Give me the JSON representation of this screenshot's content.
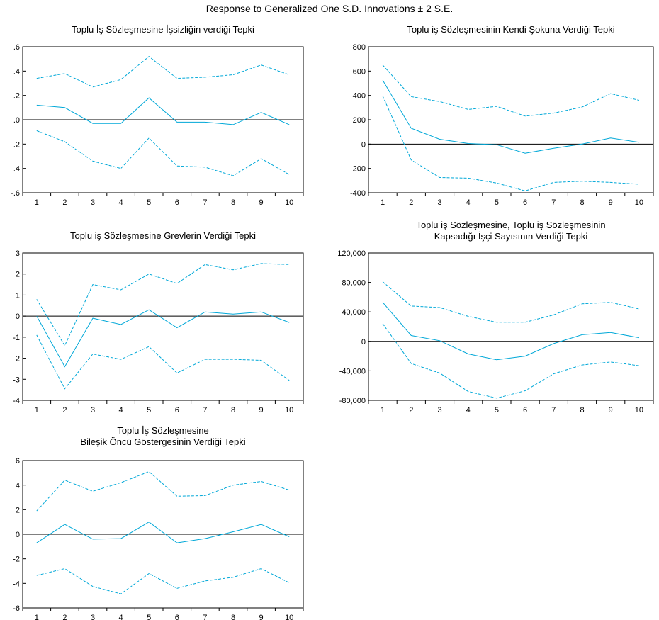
{
  "title": "Response to Generalized One S.D. Innovations ± 2 S.E.",
  "colors": {
    "response": "#00a8d8",
    "band": "#00a8d8",
    "zero": "#000000",
    "frame": "#000000"
  },
  "chart_data": [
    {
      "type": "line",
      "title_lines": [
        "Toplu İş Sözleşmesine İşsizliğin verdiği Tepki"
      ],
      "x": [
        1,
        2,
        3,
        4,
        5,
        6,
        7,
        8,
        9,
        10
      ],
      "ylim": [
        -0.6,
        0.6
      ],
      "yticks": [
        -0.6,
        -0.4,
        -0.2,
        0.0,
        0.2,
        0.4,
        0.6
      ],
      "ytick_labels": [
        "-.6",
        "-.4",
        "-.2",
        ".0",
        ".2",
        ".4",
        ".6"
      ],
      "series": [
        {
          "role": "response",
          "values": [
            0.12,
            0.1,
            -0.03,
            -0.03,
            0.18,
            -0.02,
            -0.02,
            -0.04,
            0.06,
            -0.04
          ]
        },
        {
          "role": "upper",
          "values": [
            0.34,
            0.38,
            0.27,
            0.33,
            0.52,
            0.34,
            0.35,
            0.37,
            0.45,
            0.37
          ]
        },
        {
          "role": "lower",
          "values": [
            -0.09,
            -0.18,
            -0.34,
            -0.4,
            -0.15,
            -0.38,
            -0.39,
            -0.46,
            -0.32,
            -0.45
          ]
        }
      ]
    },
    {
      "type": "line",
      "title_lines": [
        "Toplu iş Sözleşmesinin Kendi Şokuna Verdiği Tepki"
      ],
      "x": [
        1,
        2,
        3,
        4,
        5,
        6,
        7,
        8,
        9,
        10
      ],
      "ylim": [
        -400,
        800
      ],
      "yticks": [
        -400,
        -200,
        0,
        200,
        400,
        600,
        800
      ],
      "ytick_labels": [
        "-400",
        "-200",
        "0",
        "200",
        "400",
        "600",
        "800"
      ],
      "series": [
        {
          "role": "response",
          "values": [
            525,
            130,
            40,
            5,
            -5,
            -75,
            -35,
            0,
            50,
            15
          ]
        },
        {
          "role": "upper",
          "values": [
            650,
            390,
            350,
            285,
            310,
            230,
            255,
            305,
            415,
            360
          ]
        },
        {
          "role": "lower",
          "values": [
            395,
            -130,
            -275,
            -280,
            -320,
            -385,
            -315,
            -305,
            -315,
            -330
          ]
        }
      ]
    },
    {
      "type": "line",
      "title_lines": [
        "Toplu iş Sözleşmesine Grevlerin Verdiği Tepki"
      ],
      "x": [
        1,
        2,
        3,
        4,
        5,
        6,
        7,
        8,
        9,
        10
      ],
      "ylim": [
        -4,
        3
      ],
      "yticks": [
        -4,
        -3,
        -2,
        -1,
        0,
        1,
        2,
        3
      ],
      "ytick_labels": [
        "-4",
        "-3",
        "-2",
        "-1",
        "0",
        "1",
        "2",
        "3"
      ],
      "series": [
        {
          "role": "response",
          "values": [
            0.0,
            -2.4,
            -0.1,
            -0.4,
            0.3,
            -0.55,
            0.2,
            0.1,
            0.2,
            -0.3
          ]
        },
        {
          "role": "upper",
          "values": [
            0.8,
            -1.4,
            1.5,
            1.25,
            2.0,
            1.55,
            2.45,
            2.2,
            2.5,
            2.45
          ]
        },
        {
          "role": "lower",
          "values": [
            -0.9,
            -3.45,
            -1.8,
            -2.05,
            -1.45,
            -2.7,
            -2.05,
            -2.05,
            -2.1,
            -3.05
          ]
        }
      ]
    },
    {
      "type": "line",
      "title_lines": [
        "Toplu iş Sözleşmesine, Toplu iş Sözleşmesinin",
        "Kapsadığı İşçi Sayısının Verdiği Tepki"
      ],
      "x": [
        1,
        2,
        3,
        4,
        5,
        6,
        7,
        8,
        9,
        10
      ],
      "ylim": [
        -80000,
        120000
      ],
      "yticks": [
        -80000,
        -40000,
        0,
        40000,
        80000,
        120000
      ],
      "ytick_labels": [
        "-80,000",
        "-40,000",
        "0",
        "40,000",
        "80,000",
        "120,000"
      ],
      "series": [
        {
          "role": "response",
          "values": [
            53000,
            8000,
            1000,
            -17000,
            -25000,
            -20000,
            -3000,
            9000,
            12000,
            5000
          ]
        },
        {
          "role": "upper",
          "values": [
            81000,
            48000,
            46000,
            34000,
            26000,
            26000,
            36000,
            51000,
            53000,
            44000
          ]
        },
        {
          "role": "lower",
          "values": [
            24000,
            -30000,
            -43000,
            -68000,
            -77000,
            -67000,
            -44000,
            -32000,
            -28000,
            -33000
          ]
        }
      ]
    },
    {
      "type": "line",
      "title_lines": [
        "Toplu İş Sözleşmesine",
        "Bileşik Öncü Göstergesinin Verdiği Tepki"
      ],
      "x": [
        1,
        2,
        3,
        4,
        5,
        6,
        7,
        8,
        9,
        10
      ],
      "ylim": [
        -6,
        6
      ],
      "yticks": [
        -6,
        -4,
        -2,
        0,
        2,
        4,
        6
      ],
      "ytick_labels": [
        "-6",
        "-4",
        "-2",
        "0",
        "2",
        "4",
        "6"
      ],
      "series": [
        {
          "role": "response",
          "values": [
            -0.7,
            0.8,
            -0.4,
            -0.35,
            1.0,
            -0.7,
            -0.35,
            0.2,
            0.8,
            -0.2
          ]
        },
        {
          "role": "upper",
          "values": [
            1.9,
            4.4,
            3.5,
            4.2,
            5.1,
            3.1,
            3.15,
            4.0,
            4.3,
            3.6
          ]
        },
        {
          "role": "lower",
          "values": [
            -3.35,
            -2.8,
            -4.25,
            -4.85,
            -3.2,
            -4.4,
            -3.8,
            -3.5,
            -2.8,
            -3.95
          ]
        }
      ]
    }
  ]
}
